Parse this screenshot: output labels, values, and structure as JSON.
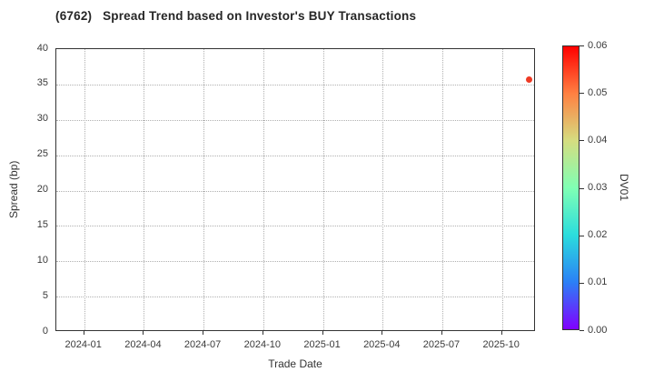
{
  "chart_data": {
    "type": "scatter",
    "title": "(6762)   Spread Trend based on Investor's BUY Transactions",
    "xlabel": "Trade Date",
    "ylabel": "Spread (bp)",
    "x_tick_labels": [
      "2024-01",
      "2024-04",
      "2024-07",
      "2024-10",
      "2025-01",
      "2025-04",
      "2025-07",
      "2025-10"
    ],
    "y_ticks": [
      0,
      5,
      10,
      15,
      20,
      25,
      30,
      35,
      40
    ],
    "ylim": [
      0,
      40
    ],
    "grid": "dotted",
    "legend": "none",
    "points": [
      {
        "trade_date": "2025-11-14",
        "spread_bp": 35.5,
        "dv01": 0.056,
        "color": "#ee3a24"
      }
    ],
    "colorbar": {
      "label": "DV01",
      "min": 0.0,
      "max": 0.06,
      "tick_labels": [
        "0.00",
        "0.01",
        "0.02",
        "0.03",
        "0.04",
        "0.05",
        "0.06"
      ],
      "colormap": "rainbow",
      "gradient_stops_bottom_to_top": [
        "#8000ff",
        "#2b80f6",
        "#2bdddd",
        "#80ffb4",
        "#d5dd80",
        "#ff8042",
        "#ff0000"
      ]
    }
  }
}
